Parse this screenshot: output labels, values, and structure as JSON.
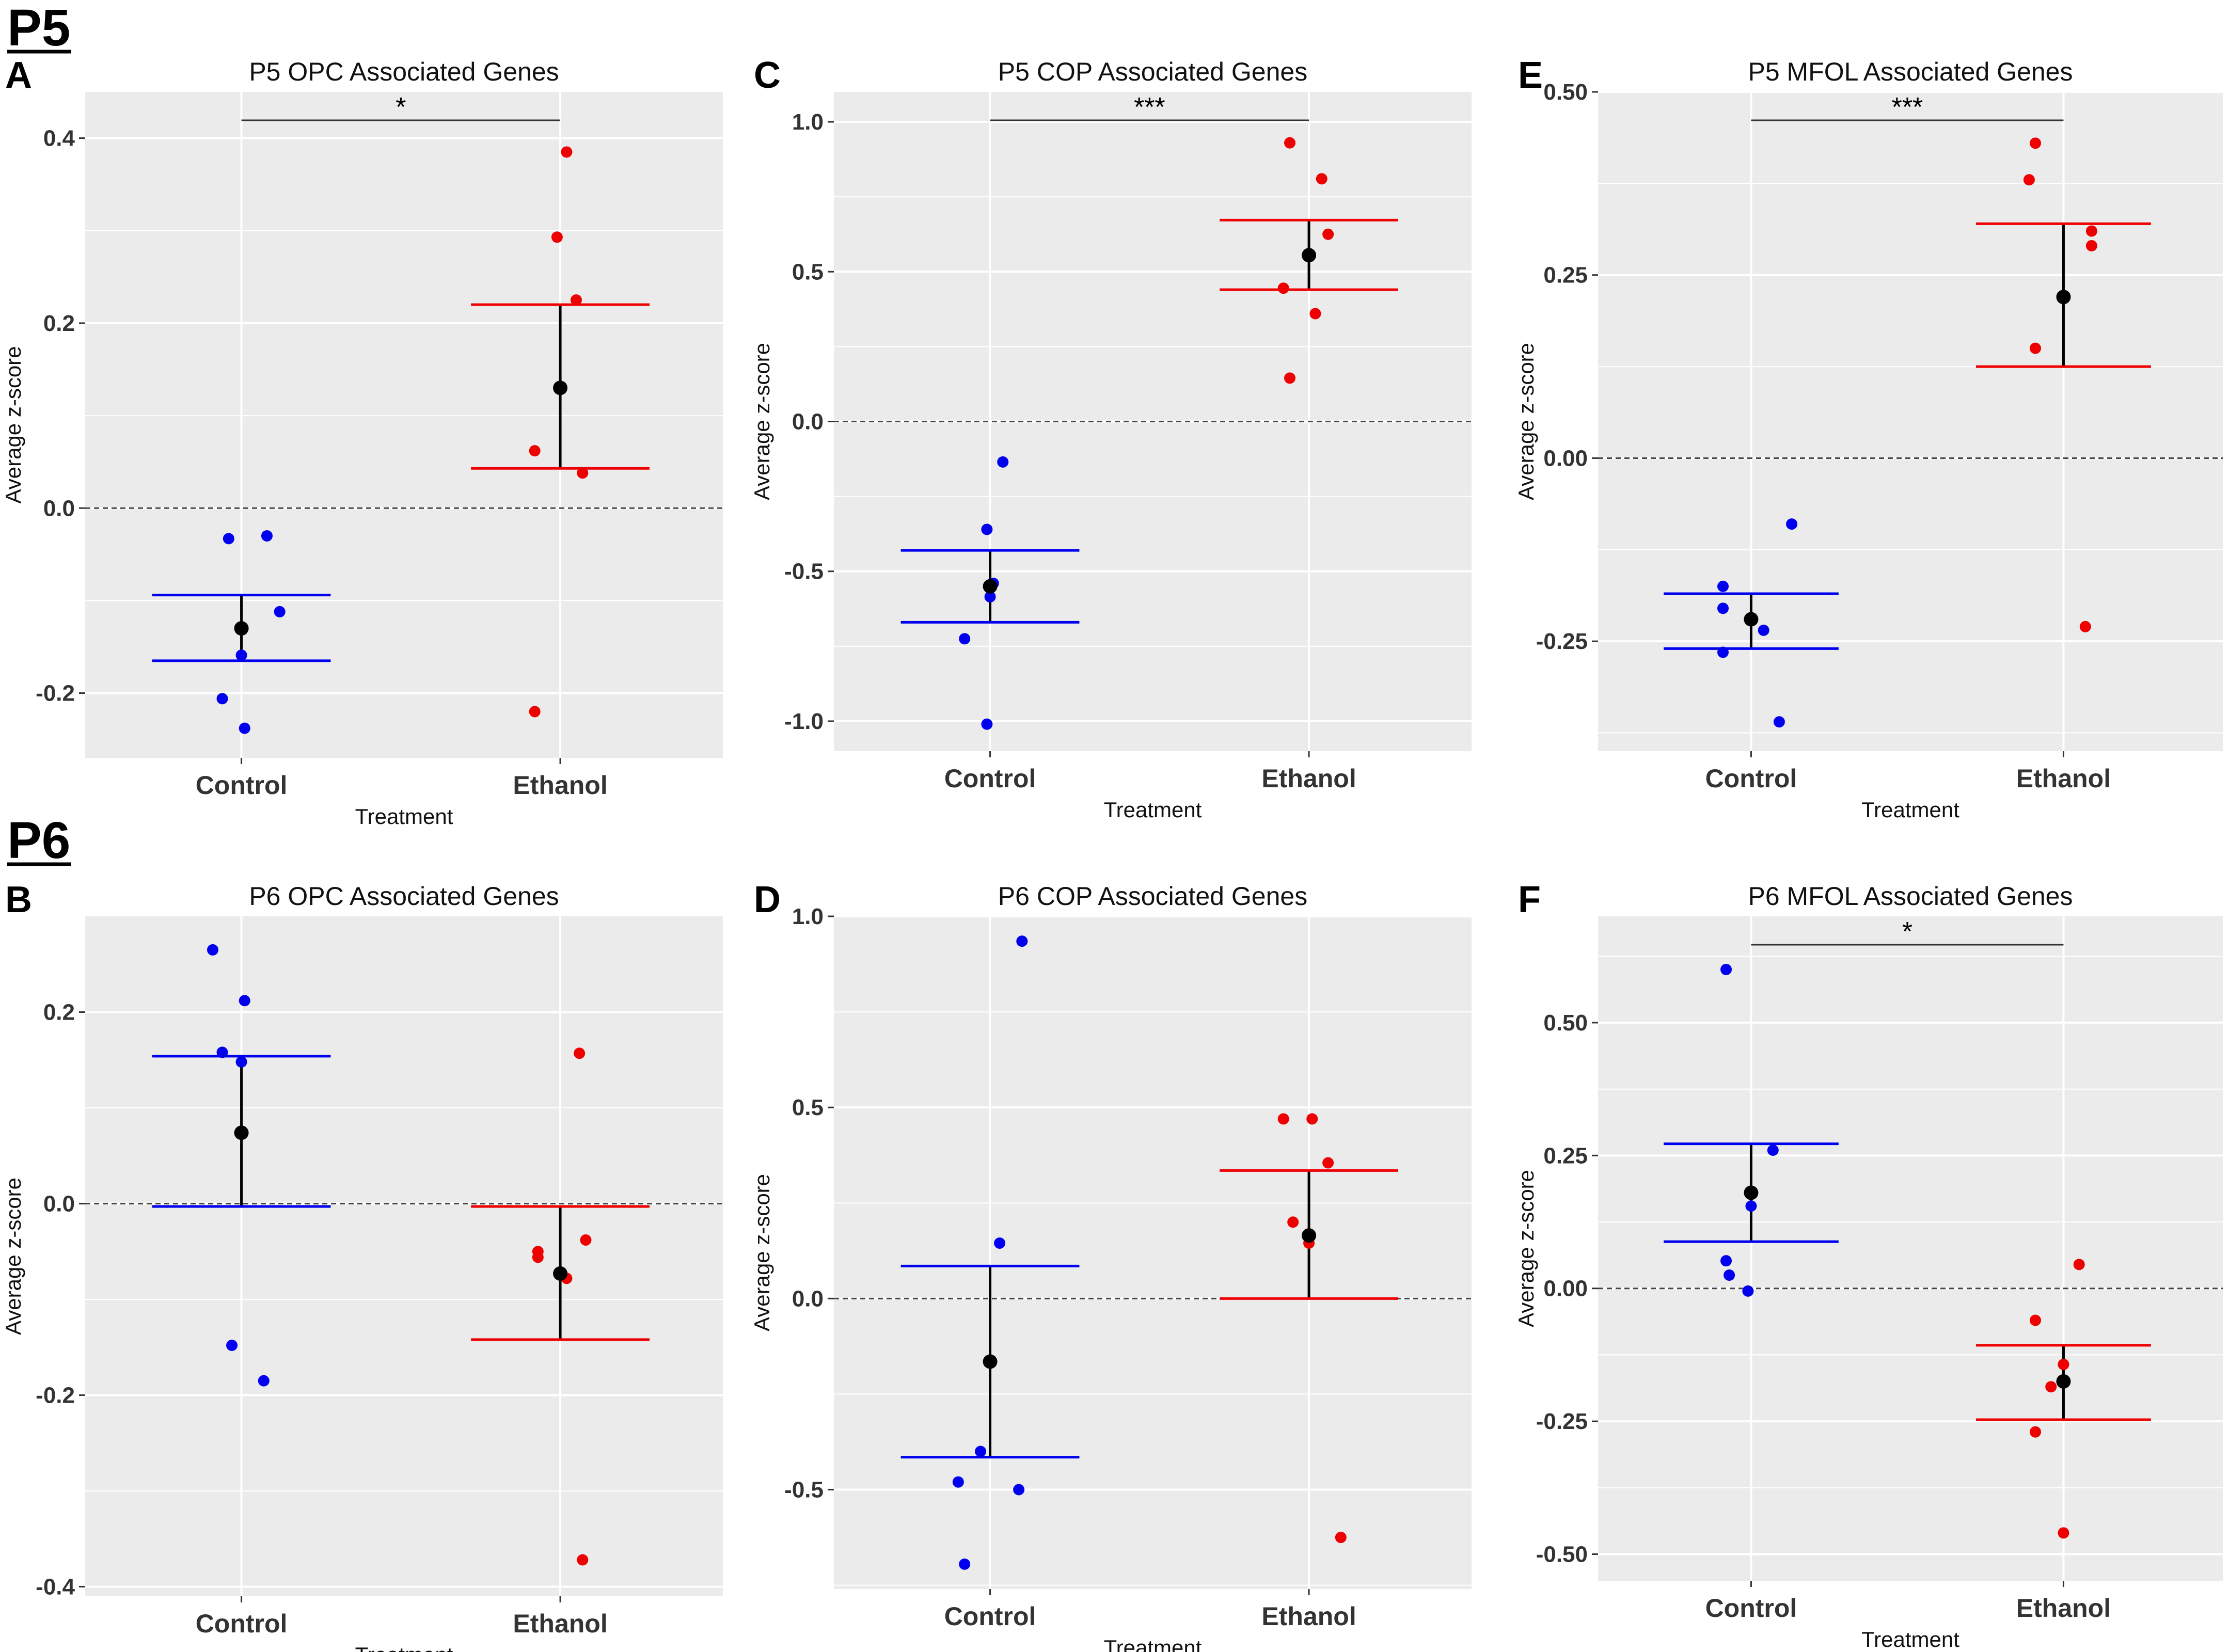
{
  "sections": [
    {
      "label": "P5"
    },
    {
      "label": "P6"
    }
  ],
  "colors": {
    "control": "#0000ee",
    "ethanol": "#ee0000",
    "mean": "#000000",
    "panel_bg": "#ebebeb",
    "grid": "#ffffff"
  },
  "chart_data": [
    {
      "type": "scatter",
      "letter": "A",
      "title": "P5 OPC Associated Genes",
      "xlabel": "Treatment",
      "ylabel": "Average z-score",
      "categories": [
        "Control",
        "Ethanol"
      ],
      "ylim": [
        -0.27,
        0.45
      ],
      "yticks": [
        -0.2,
        0.0,
        0.2,
        0.4
      ],
      "ytick_labels": [
        "-0.2",
        "0.0",
        "0.2",
        "0.4"
      ],
      "significance": "*",
      "series": [
        {
          "name": "Control",
          "jitter": [
            -0.04,
            0.08,
            0.12,
            0.0,
            -0.06,
            0.01
          ],
          "values": [
            -0.033,
            -0.03,
            -0.112,
            -0.159,
            -0.206,
            -0.238
          ],
          "mean": -0.13,
          "upper": -0.094,
          "lower": -0.165
        },
        {
          "name": "Ethanol",
          "jitter": [
            0.02,
            -0.01,
            0.05,
            -0.08,
            0.07,
            -0.08
          ],
          "values": [
            0.385,
            0.293,
            0.225,
            0.062,
            0.038,
            -0.22
          ],
          "mean": 0.13,
          "upper": 0.22,
          "lower": 0.043
        }
      ]
    },
    {
      "type": "scatter",
      "letter": "C",
      "title": "P5 COP Associated Genes",
      "xlabel": "Treatment",
      "ylabel": "Average z-score",
      "categories": [
        "Control",
        "Ethanol"
      ],
      "ylim": [
        -1.1,
        1.1
      ],
      "yticks": [
        -1.0,
        -0.5,
        0.0,
        0.5,
        1.0
      ],
      "ytick_labels": [
        "-1.0",
        "-0.5",
        "0.0",
        "0.5",
        "1.0"
      ],
      "significance": "***",
      "series": [
        {
          "name": "Control",
          "jitter": [
            0.04,
            -0.01,
            0.01,
            0.0,
            -0.08,
            -0.01
          ],
          "values": [
            -0.135,
            -0.36,
            -0.54,
            -0.585,
            -0.725,
            -1.01
          ],
          "mean": -0.55,
          "upper": -0.43,
          "lower": -0.67
        },
        {
          "name": "Ethanol",
          "jitter": [
            -0.06,
            0.04,
            0.06,
            -0.08,
            0.02,
            -0.06
          ],
          "values": [
            0.93,
            0.81,
            0.625,
            0.445,
            0.36,
            0.145
          ],
          "mean": 0.555,
          "upper": 0.672,
          "lower": 0.44
        }
      ]
    },
    {
      "type": "scatter",
      "letter": "E",
      "title": "P5 MFOL Associated Genes",
      "xlabel": "Treatment",
      "ylabel": "Average z-score",
      "categories": [
        "Control",
        "Ethanol"
      ],
      "ylim": [
        -0.4,
        0.5
      ],
      "yticks": [
        -0.25,
        0.0,
        0.25,
        0.5
      ],
      "ytick_labels": [
        "-0.25",
        "0.00",
        "0.25",
        "0.50"
      ],
      "significance": "***",
      "series": [
        {
          "name": "Control",
          "jitter": [
            0.13,
            -0.09,
            -0.09,
            0.04,
            -0.09,
            0.09
          ],
          "values": [
            -0.09,
            -0.175,
            -0.205,
            -0.235,
            -0.265,
            -0.36
          ],
          "mean": -0.22,
          "upper": -0.185,
          "lower": -0.26
        },
        {
          "name": "Ethanol",
          "jitter": [
            -0.09,
            -0.11,
            0.09,
            0.09,
            -0.09,
            0.07
          ],
          "values": [
            0.43,
            0.38,
            0.31,
            0.29,
            0.15,
            -0.23
          ],
          "mean": 0.22,
          "upper": 0.32,
          "lower": 0.125
        }
      ]
    },
    {
      "type": "scatter",
      "letter": "B",
      "title": "P6 OPC Associated Genes",
      "xlabel": "Treatment",
      "ylabel": "Average z-score",
      "categories": [
        "Control",
        "Ethanol"
      ],
      "ylim": [
        -0.41,
        0.3
      ],
      "yticks": [
        -0.4,
        -0.2,
        0.0,
        0.2
      ],
      "ytick_labels": [
        "-0.4",
        "-0.2",
        "0.0",
        "0.2"
      ],
      "significance": "",
      "series": [
        {
          "name": "Control",
          "jitter": [
            -0.09,
            0.01,
            -0.06,
            0.0,
            -0.03,
            0.07
          ],
          "values": [
            0.265,
            0.212,
            0.158,
            0.148,
            -0.148,
            -0.185
          ],
          "mean": 0.074,
          "upper": 0.154,
          "lower": -0.003
        },
        {
          "name": "Ethanol",
          "jitter": [
            0.06,
            0.08,
            -0.07,
            -0.07,
            0.02,
            0.07
          ],
          "values": [
            0.157,
            -0.038,
            -0.05,
            -0.056,
            -0.078,
            -0.372
          ],
          "mean": -0.073,
          "upper": -0.003,
          "lower": -0.142
        }
      ]
    },
    {
      "type": "scatter",
      "letter": "D",
      "title": "P6 COP Associated Genes",
      "xlabel": "Treatment",
      "ylabel": "Average z-score",
      "categories": [
        "Control",
        "Ethanol"
      ],
      "ylim": [
        -0.76,
        1.0
      ],
      "yticks": [
        -0.5,
        0.0,
        0.5,
        1.0
      ],
      "ytick_labels": [
        "-0.5",
        "0.0",
        "0.5",
        "1.0"
      ],
      "significance": "",
      "series": [
        {
          "name": "Control",
          "jitter": [
            0.1,
            0.03,
            -0.03,
            0.09,
            -0.1,
            -0.08
          ],
          "values": [
            0.935,
            0.145,
            -0.4,
            -0.5,
            -0.48,
            -0.695
          ],
          "mean": -0.165,
          "upper": 0.085,
          "lower": -0.415
        },
        {
          "name": "Ethanol",
          "jitter": [
            -0.08,
            0.01,
            0.06,
            -0.05,
            0.0,
            0.1
          ],
          "values": [
            0.47,
            0.47,
            0.355,
            0.2,
            0.145,
            -0.625
          ],
          "mean": 0.165,
          "upper": 0.335,
          "lower": 0.0
        }
      ]
    },
    {
      "type": "scatter",
      "letter": "F",
      "title": "P6 MFOL Associated Genes",
      "xlabel": "Treatment",
      "ylabel": "Average z-score",
      "categories": [
        "Control",
        "Ethanol"
      ],
      "ylim": [
        -0.55,
        0.7
      ],
      "yticks": [
        -0.5,
        -0.25,
        0.0,
        0.25,
        0.5
      ],
      "ytick_labels": [
        "-0.50",
        "-0.25",
        "0.00",
        "0.25",
        "0.50"
      ],
      "significance": "*",
      "series": [
        {
          "name": "Control",
          "jitter": [
            -0.08,
            0.07,
            0.0,
            -0.08,
            -0.07,
            -0.01
          ],
          "values": [
            0.6,
            0.26,
            0.155,
            0.052,
            0.025,
            -0.005
          ],
          "mean": 0.18,
          "upper": 0.272,
          "lower": 0.088
        },
        {
          "name": "Ethanol",
          "jitter": [
            0.05,
            -0.09,
            0.0,
            -0.04,
            -0.09,
            0.0
          ],
          "values": [
            0.045,
            -0.06,
            -0.143,
            -0.185,
            -0.27,
            -0.46
          ],
          "mean": -0.175,
          "upper": -0.107,
          "lower": -0.247
        }
      ]
    }
  ]
}
